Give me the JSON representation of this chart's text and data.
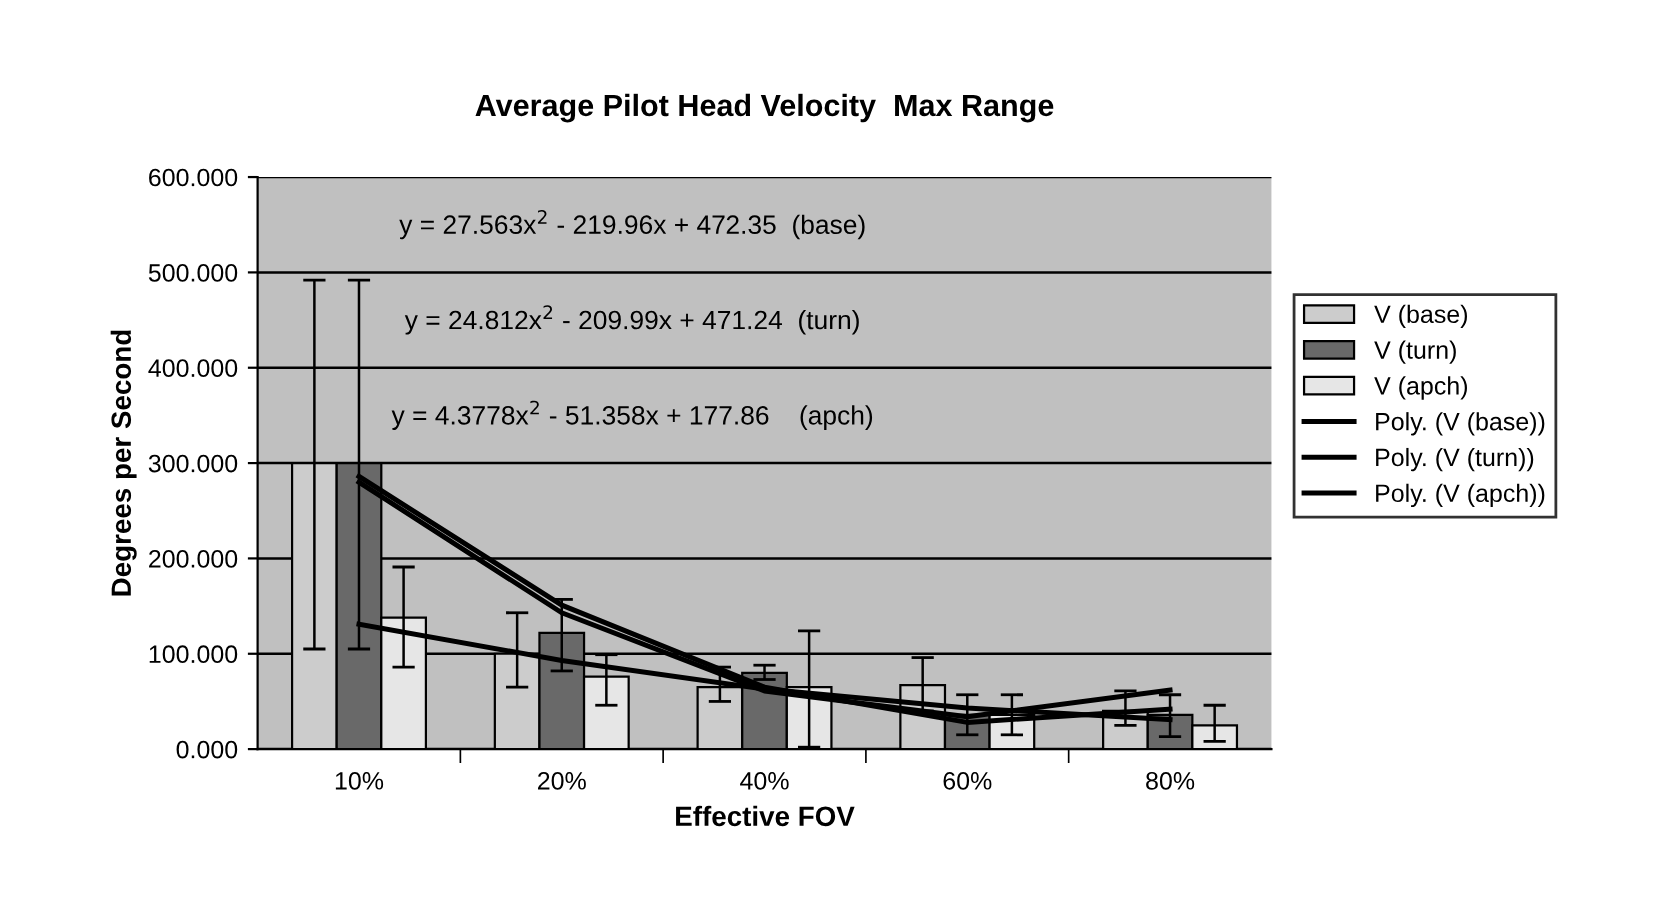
{
  "chart_data": {
    "type": "bar",
    "title": "Average Pilot Head Velocity  Max Range",
    "xlabel": "Effective FOV",
    "ylabel": "Degrees per Second",
    "categories": [
      "10%",
      "20%",
      "40%",
      "60%",
      "80%"
    ],
    "series": [
      {
        "name": "V (base)",
        "color": "#cccccc",
        "values": [
          300,
          100,
          65,
          67,
          40
        ],
        "errors": [
          [
            105,
            492
          ],
          [
            65,
            143
          ],
          [
            50,
            86
          ],
          [
            40,
            96
          ],
          [
            25,
            61
          ]
        ]
      },
      {
        "name": "V (turn)",
        "color": "#696969",
        "values": [
          300,
          122,
          80,
          36,
          36
        ],
        "errors": [
          [
            105,
            492
          ],
          [
            82,
            157
          ],
          [
            73,
            88
          ],
          [
            15,
            57
          ],
          [
            13,
            57
          ]
        ]
      },
      {
        "name": "V (apch)",
        "color": "#e6e6e6",
        "values": [
          138,
          76,
          65,
          36,
          25
        ],
        "errors": [
          [
            86,
            191
          ],
          [
            46,
            99
          ],
          [
            2,
            124
          ],
          [
            15,
            57
          ],
          [
            8,
            46
          ]
        ]
      },
      {
        "name": "Poly. (V (base))",
        "type": "line",
        "color": "#000000",
        "values": [
          280,
          143,
          61,
          34,
          62
        ]
      },
      {
        "name": "Poly. (V (turn))",
        "type": "line",
        "color": "#000000",
        "values": [
          286,
          151,
          65,
          28,
          42
        ]
      },
      {
        "name": "Poly. (V (apch))",
        "type": "line",
        "color": "#000000",
        "values": [
          131,
          93,
          63,
          43,
          31
        ]
      }
    ],
    "ylim": [
      0,
      600
    ],
    "yticks": [
      {
        "value": 0,
        "label": "0.000"
      },
      {
        "value": 100,
        "label": "100.000"
      },
      {
        "value": 200,
        "label": "200.000"
      },
      {
        "value": 300,
        "label": "300.000"
      },
      {
        "value": 400,
        "label": "400.000"
      },
      {
        "value": 500,
        "label": "500.000"
      },
      {
        "value": 600,
        "label": "600.000"
      }
    ],
    "annotations": [
      "y = 27.563x$^{2}$ - 219.96x + 472.35  (base)",
      "y = 24.812x$^{2}$ - 209.99x + 471.24  (turn)",
      "y = 4.3778x$^{2}$ - 51.358x + 177.86    (apch)"
    ],
    "grid": "y",
    "legend": "right"
  }
}
